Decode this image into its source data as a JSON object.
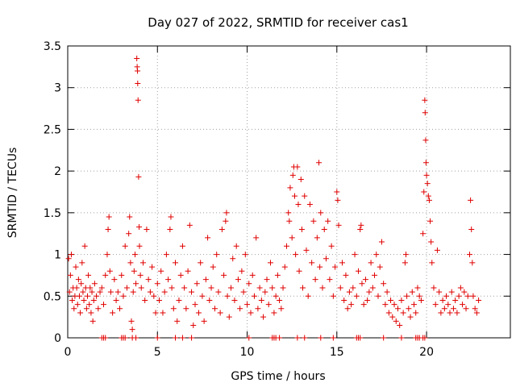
{
  "chart_data": {
    "type": "scatter",
    "title": "Day 027 of 2022, SRMTID for receiver cas1",
    "xlabel": "GPS time / hours",
    "ylabel": "SRMTID / TECUs",
    "xlim": [
      0,
      24.67
    ],
    "ylim": [
      0,
      3.5
    ],
    "xticks": [
      0,
      5,
      10,
      15,
      20
    ],
    "yticks": [
      0,
      0.5,
      1,
      1.5,
      2,
      2.5,
      3,
      3.5
    ],
    "ytick_labels": [
      "0",
      "0.5",
      "1",
      "1.5",
      "2",
      "2.5",
      "3",
      "3.5"
    ],
    "xtick_labels": [
      "0",
      "5",
      "10",
      "15",
      "20"
    ],
    "grid": true,
    "marker": "+",
    "marker_color": "#e00000",
    "series": [
      {
        "name": "SRMTID",
        "description_points": "approximate representative sample of the plotted + markers",
        "points": [
          [
            0.05,
            0.95
          ],
          [
            0.1,
            0.55
          ],
          [
            0.15,
            0.75
          ],
          [
            0.2,
            1.0
          ],
          [
            0.25,
            0.45
          ],
          [
            0.3,
            0.6
          ],
          [
            0.35,
            0.35
          ],
          [
            0.4,
            0.5
          ],
          [
            0.45,
            0.85
          ],
          [
            0.5,
            0.6
          ],
          [
            0.55,
            0.4
          ],
          [
            0.6,
            0.7
          ],
          [
            0.65,
            0.5
          ],
          [
            0.7,
            0.3
          ],
          [
            0.75,
            0.65
          ],
          [
            0.8,
            0.9
          ],
          [
            0.85,
            0.55
          ],
          [
            0.9,
            0.45
          ],
          [
            0.95,
            1.1
          ],
          [
            1.0,
            0.6
          ],
          [
            1.05,
            0.35
          ],
          [
            1.1,
            0.5
          ],
          [
            1.15,
            0.75
          ],
          [
            1.2,
            0.4
          ],
          [
            1.25,
            0.6
          ],
          [
            1.3,
            0.3
          ],
          [
            1.35,
            0.55
          ],
          [
            1.4,
            0.2
          ],
          [
            1.45,
            0.45
          ],
          [
            1.5,
            0.65
          ],
          [
            1.6,
            0.5
          ],
          [
            1.7,
            0.35
          ],
          [
            1.8,
            0.55
          ],
          [
            1.9,
            0.6
          ],
          [
            2.0,
            0.4
          ],
          [
            2.1,
            0.75
          ],
          [
            2.2,
            1.0
          ],
          [
            2.25,
            1.3
          ],
          [
            2.3,
            1.45
          ],
          [
            2.35,
            0.8
          ],
          [
            2.4,
            0.55
          ],
          [
            2.5,
            0.3
          ],
          [
            2.6,
            0.7
          ],
          [
            2.7,
            0.45
          ],
          [
            2.8,
            0.55
          ],
          [
            2.9,
            0.35
          ],
          [
            3.0,
            0.75
          ],
          [
            3.1,
            0.5
          ],
          [
            3.2,
            1.1
          ],
          [
            3.3,
            0.6
          ],
          [
            3.4,
            1.25
          ],
          [
            3.45,
            1.45
          ],
          [
            3.5,
            0.9
          ],
          [
            3.55,
            0.2
          ],
          [
            3.6,
            0.1
          ],
          [
            3.65,
            0.55
          ],
          [
            3.7,
            0.8
          ],
          [
            3.75,
            1.0
          ],
          [
            3.8,
            0.65
          ],
          [
            3.85,
            3.35
          ],
          [
            3.87,
            3.25
          ],
          [
            3.89,
            3.2
          ],
          [
            3.9,
            3.05
          ],
          [
            3.92,
            2.85
          ],
          [
            3.95,
            1.93
          ],
          [
            3.98,
            1.33
          ],
          [
            4.0,
            1.1
          ],
          [
            4.05,
            0.75
          ],
          [
            4.1,
            0.6
          ],
          [
            4.2,
            0.9
          ],
          [
            4.3,
            0.45
          ],
          [
            4.4,
            1.3
          ],
          [
            4.5,
            0.7
          ],
          [
            4.6,
            0.55
          ],
          [
            4.7,
            0.85
          ],
          [
            4.8,
            0.5
          ],
          [
            4.9,
            0.3
          ],
          [
            5.0,
            0.65
          ],
          [
            5.1,
            0.45
          ],
          [
            5.2,
            0.8
          ],
          [
            5.3,
            0.3
          ],
          [
            5.4,
            0.55
          ],
          [
            5.5,
            1.0
          ],
          [
            5.6,
            0.7
          ],
          [
            5.7,
            1.3
          ],
          [
            5.75,
            1.45
          ],
          [
            5.8,
            0.6
          ],
          [
            5.9,
            0.35
          ],
          [
            6.0,
            0.9
          ],
          [
            6.1,
            0.2
          ],
          [
            6.2,
            0.45
          ],
          [
            6.3,
            0.75
          ],
          [
            6.4,
            1.1
          ],
          [
            6.5,
            0.6
          ],
          [
            6.6,
            0.35
          ],
          [
            6.7,
            0.8
          ],
          [
            6.8,
            1.35
          ],
          [
            6.9,
            0.55
          ],
          [
            7.0,
            0.15
          ],
          [
            7.1,
            0.4
          ],
          [
            7.2,
            0.65
          ],
          [
            7.3,
            0.3
          ],
          [
            7.4,
            0.9
          ],
          [
            7.5,
            0.5
          ],
          [
            7.6,
            0.2
          ],
          [
            7.7,
            0.7
          ],
          [
            7.8,
            1.2
          ],
          [
            7.9,
            0.45
          ],
          [
            8.0,
            0.6
          ],
          [
            8.1,
            0.85
          ],
          [
            8.2,
            0.35
          ],
          [
            8.3,
            1.0
          ],
          [
            8.4,
            0.55
          ],
          [
            8.5,
            0.3
          ],
          [
            8.6,
            1.3
          ],
          [
            8.7,
            0.75
          ],
          [
            8.8,
            1.4
          ],
          [
            8.85,
            1.5
          ],
          [
            8.9,
            0.5
          ],
          [
            9.0,
            0.25
          ],
          [
            9.1,
            0.6
          ],
          [
            9.2,
            0.95
          ],
          [
            9.3,
            0.45
          ],
          [
            9.4,
            1.1
          ],
          [
            9.5,
            0.7
          ],
          [
            9.6,
            0.35
          ],
          [
            9.7,
            0.8
          ],
          [
            9.8,
            0.55
          ],
          [
            9.9,
            1.0
          ],
          [
            10.0,
            0.4
          ],
          [
            10.1,
            0.65
          ],
          [
            10.2,
            0.3
          ],
          [
            10.3,
            0.75
          ],
          [
            10.4,
            0.5
          ],
          [
            10.5,
            1.2
          ],
          [
            10.6,
            0.35
          ],
          [
            10.7,
            0.6
          ],
          [
            10.8,
            0.45
          ],
          [
            10.9,
            0.25
          ],
          [
            11.0,
            0.55
          ],
          [
            11.1,
            0.7
          ],
          [
            11.2,
            0.4
          ],
          [
            11.3,
            0.9
          ],
          [
            11.4,
            0.6
          ],
          [
            11.5,
            0.3
          ],
          [
            11.6,
            0.5
          ],
          [
            11.7,
            0.75
          ],
          [
            11.8,
            0.45
          ],
          [
            11.9,
            0.35
          ],
          [
            12.0,
            0.6
          ],
          [
            12.1,
            0.85
          ],
          [
            12.2,
            1.1
          ],
          [
            12.3,
            1.5
          ],
          [
            12.35,
            1.4
          ],
          [
            12.4,
            1.8
          ],
          [
            12.5,
            1.2
          ],
          [
            12.55,
            1.95
          ],
          [
            12.6,
            2.05
          ],
          [
            12.65,
            1.7
          ],
          [
            12.7,
            1.0
          ],
          [
            12.8,
            2.05
          ],
          [
            12.85,
            1.6
          ],
          [
            12.9,
            0.8
          ],
          [
            13.0,
            1.9
          ],
          [
            13.05,
            1.3
          ],
          [
            13.1,
            0.6
          ],
          [
            13.2,
            1.7
          ],
          [
            13.3,
            1.05
          ],
          [
            13.4,
            0.5
          ],
          [
            13.5,
            1.6
          ],
          [
            13.6,
            0.9
          ],
          [
            13.7,
            1.4
          ],
          [
            13.8,
            0.7
          ],
          [
            13.9,
            1.2
          ],
          [
            14.0,
            2.1
          ],
          [
            14.05,
            0.85
          ],
          [
            14.1,
            1.5
          ],
          [
            14.2,
            0.6
          ],
          [
            14.3,
            1.3
          ],
          [
            14.4,
            0.95
          ],
          [
            14.5,
            1.4
          ],
          [
            14.6,
            0.7
          ],
          [
            14.7,
            1.1
          ],
          [
            14.8,
            0.5
          ],
          [
            14.9,
            0.85
          ],
          [
            15.0,
            1.75
          ],
          [
            15.05,
            1.65
          ],
          [
            15.1,
            1.35
          ],
          [
            15.2,
            0.6
          ],
          [
            15.3,
            0.9
          ],
          [
            15.4,
            0.45
          ],
          [
            15.5,
            0.75
          ],
          [
            15.6,
            0.35
          ],
          [
            15.7,
            0.55
          ],
          [
            15.8,
            0.4
          ],
          [
            15.9,
            0.6
          ],
          [
            16.0,
            1.0
          ],
          [
            16.1,
            0.5
          ],
          [
            16.2,
            0.8
          ],
          [
            16.3,
            1.3
          ],
          [
            16.35,
            1.35
          ],
          [
            16.4,
            0.65
          ],
          [
            16.5,
            0.4
          ],
          [
            16.6,
            0.7
          ],
          [
            16.7,
            0.45
          ],
          [
            16.8,
            0.55
          ],
          [
            16.9,
            0.9
          ],
          [
            17.0,
            0.6
          ],
          [
            17.1,
            0.75
          ],
          [
            17.2,
            1.0
          ],
          [
            17.3,
            0.5
          ],
          [
            17.4,
            0.85
          ],
          [
            17.5,
            1.15
          ],
          [
            17.6,
            0.65
          ],
          [
            17.7,
            0.4
          ],
          [
            17.8,
            0.55
          ],
          [
            17.9,
            0.3
          ],
          [
            18.0,
            0.45
          ],
          [
            18.1,
            0.25
          ],
          [
            18.2,
            0.4
          ],
          [
            18.3,
            0.2
          ],
          [
            18.4,
            0.35
          ],
          [
            18.5,
            0.15
          ],
          [
            18.6,
            0.45
          ],
          [
            18.7,
            0.3
          ],
          [
            18.8,
            0.9
          ],
          [
            18.85,
            1.0
          ],
          [
            18.9,
            0.5
          ],
          [
            19.0,
            0.35
          ],
          [
            19.1,
            0.25
          ],
          [
            19.2,
            0.55
          ],
          [
            19.3,
            0.4
          ],
          [
            19.4,
            0.3
          ],
          [
            19.5,
            0.6
          ],
          [
            19.6,
            0.5
          ],
          [
            19.7,
            0.45
          ],
          [
            19.8,
            1.25
          ],
          [
            19.85,
            1.75
          ],
          [
            19.9,
            2.85
          ],
          [
            19.92,
            2.7
          ],
          [
            19.95,
            2.37
          ],
          [
            19.97,
            2.1
          ],
          [
            20.0,
            1.95
          ],
          [
            20.05,
            1.85
          ],
          [
            20.1,
            1.7
          ],
          [
            20.15,
            1.65
          ],
          [
            20.2,
            1.4
          ],
          [
            20.25,
            1.15
          ],
          [
            20.3,
            0.9
          ],
          [
            20.4,
            0.6
          ],
          [
            20.5,
            0.4
          ],
          [
            20.6,
            1.05
          ],
          [
            20.7,
            0.55
          ],
          [
            20.8,
            0.3
          ],
          [
            20.9,
            0.45
          ],
          [
            21.0,
            0.35
          ],
          [
            21.1,
            0.5
          ],
          [
            21.2,
            0.4
          ],
          [
            21.3,
            0.3
          ],
          [
            21.4,
            0.55
          ],
          [
            21.5,
            0.35
          ],
          [
            21.6,
            0.45
          ],
          [
            21.7,
            0.3
          ],
          [
            21.8,
            0.5
          ],
          [
            21.9,
            0.6
          ],
          [
            22.0,
            0.4
          ],
          [
            22.1,
            0.55
          ],
          [
            22.2,
            0.35
          ],
          [
            22.3,
            0.5
          ],
          [
            22.4,
            1.0
          ],
          [
            22.45,
            1.65
          ],
          [
            22.5,
            1.3
          ],
          [
            22.55,
            0.9
          ],
          [
            22.6,
            0.5
          ],
          [
            22.7,
            0.35
          ],
          [
            22.8,
            0.3
          ],
          [
            22.9,
            0.45
          ]
        ]
      }
    ],
    "zero_points_x": [
      1.9,
      2.0,
      2.1,
      3.0,
      3.1,
      3.2,
      3.6,
      3.8,
      5.0,
      6.0,
      6.4,
      6.9,
      10.1,
      11.4,
      11.5,
      11.6,
      11.8,
      12.8,
      13.2,
      14.1,
      14.8,
      16.1,
      16.2,
      16.3,
      17.6,
      18.6,
      19.4,
      19.5,
      19.6,
      19.8,
      19.9
    ]
  }
}
